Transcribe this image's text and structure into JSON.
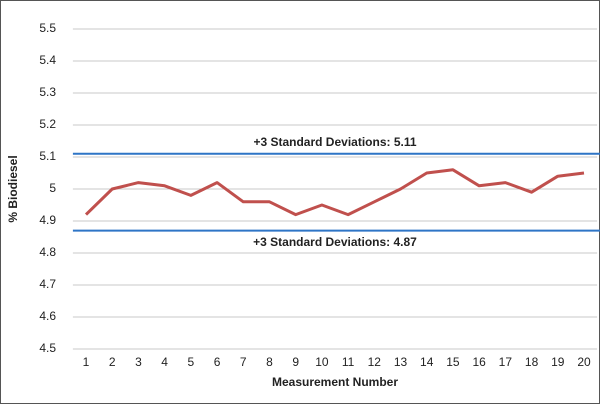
{
  "chart_data": {
    "type": "line",
    "x": [
      1,
      2,
      3,
      4,
      5,
      6,
      7,
      8,
      9,
      10,
      11,
      12,
      13,
      14,
      15,
      16,
      17,
      18,
      19,
      20
    ],
    "values": [
      4.92,
      5.0,
      5.02,
      5.01,
      4.98,
      5.02,
      4.96,
      4.96,
      4.92,
      4.95,
      4.92,
      4.96,
      5.0,
      5.05,
      5.06,
      5.01,
      5.02,
      4.99,
      5.04,
      5.05
    ],
    "color": "#c0504d",
    "xlim": [
      0.5,
      20.5
    ],
    "xticks": [
      1,
      2,
      3,
      4,
      5,
      6,
      7,
      8,
      9,
      10,
      11,
      12,
      13,
      14,
      15,
      16,
      17,
      18,
      19,
      20
    ],
    "ylim": [
      4.5,
      5.5
    ],
    "yticks": [
      4.5,
      4.6,
      4.7,
      4.8,
      4.9,
      5,
      5.1,
      5.2,
      5.3,
      5.4,
      5.5
    ],
    "grid": true,
    "xlabel": "Measurement Number",
    "ylabel": "% Biodiesel",
    "reference_lines": [
      {
        "label": "+3 Standard Deviations: 5.11",
        "value": 5.11,
        "color": "#2e75c6"
      },
      {
        "label": "+3 Standard Deviations: 4.87",
        "value": 4.87,
        "color": "#2e75c6"
      }
    ]
  }
}
